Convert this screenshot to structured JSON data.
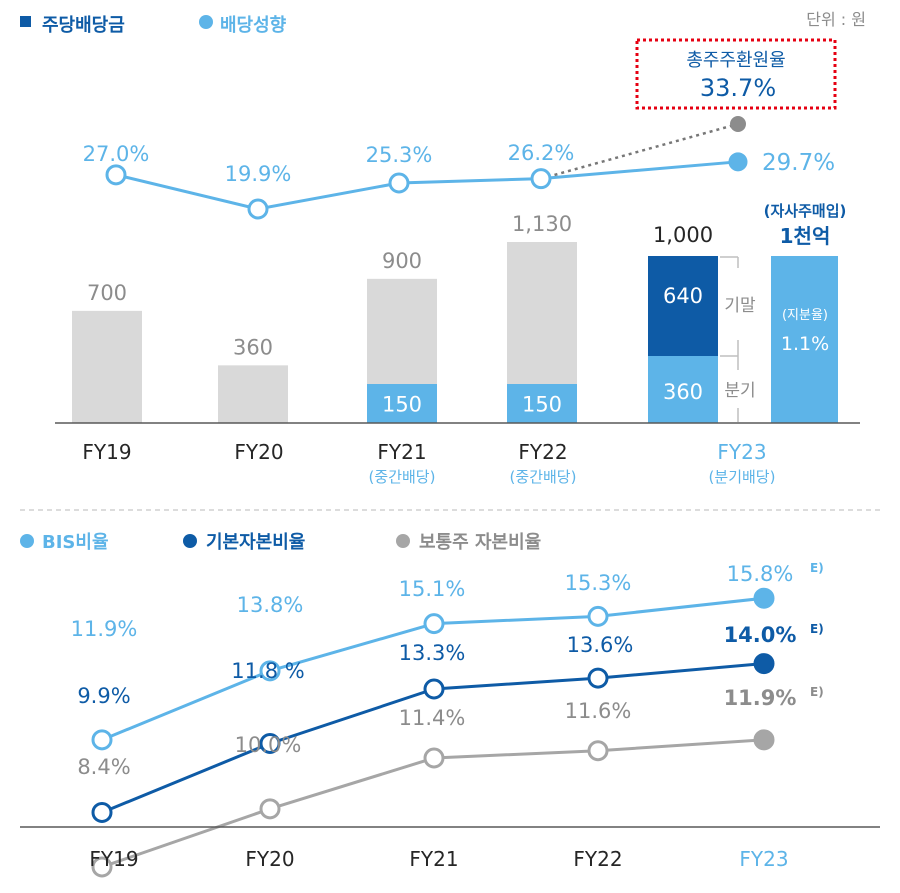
{
  "colors": {
    "dark_blue": "#0e5ba6",
    "light_blue": "#5db4e8",
    "gray_bar": "#d9d9d9",
    "gray_line": "#a6a6a6",
    "text_gray": "#8c8c8c",
    "text_dark": "#262626",
    "red_dotted": "#e60012"
  },
  "top_legend": {
    "dividend_label": "주당배당금",
    "payout_label": "배당성향"
  },
  "unit_label": "단위 : 원",
  "callout": {
    "title": "총주주환원율",
    "value": "33.7%"
  },
  "buyback": {
    "title": "(자사주매입)",
    "amount": "1천억",
    "ratio_label": "(지분율)",
    "ratio_value": "1.1%"
  },
  "fy23_split": {
    "year_end_label": "기말",
    "quarterly_label": "분기"
  },
  "top_categories": [
    {
      "name": "FY19",
      "sub": ""
    },
    {
      "name": "FY20",
      "sub": ""
    },
    {
      "name": "FY21",
      "sub": "(중간배당)"
    },
    {
      "name": "FY22",
      "sub": "(중간배당)"
    },
    {
      "name": "FY23",
      "sub": "(분기배당)"
    }
  ],
  "bottom_legend": {
    "bis_label": "BIS비율",
    "tier1_label": "기본자본비율",
    "cet1_label": "보통주 자본비율"
  },
  "bottom_categories": [
    "FY19",
    "FY20",
    "FY21",
    "FY22",
    "FY23"
  ],
  "chart_data": [
    {
      "type": "bar",
      "unit": "원",
      "categories": [
        "FY19",
        "FY20",
        "FY21",
        "FY22",
        "FY23"
      ],
      "series": [
        {
          "name": "주당배당금",
          "values": [
            700,
            360,
            900,
            1130,
            1000
          ],
          "labels": [
            "700",
            "360",
            "900",
            "1,130",
            "1,000"
          ]
        },
        {
          "name": "interim",
          "values": [
            null,
            null,
            150,
            150,
            360
          ],
          "labels": [
            "",
            "",
            "150",
            "150",
            "360"
          ]
        },
        {
          "name": "기말",
          "values": [
            null,
            null,
            null,
            null,
            640
          ],
          "labels": [
            "",
            "",
            "",
            "",
            "640"
          ]
        }
      ],
      "line_series": {
        "name": "배당성향",
        "values": [
          27.0,
          19.9,
          25.3,
          26.2,
          29.7
        ],
        "labels": [
          "27.0%",
          "19.9%",
          "25.3%",
          "26.2%",
          "29.7%"
        ]
      },
      "total_shareholder_return": 33.7
    },
    {
      "type": "line",
      "categories": [
        "FY19",
        "FY20",
        "FY21",
        "FY22",
        "FY23"
      ],
      "series": [
        {
          "name": "BIS비율",
          "values": [
            11.9,
            13.8,
            15.1,
            15.3,
            15.8
          ],
          "labels": [
            "11.9%",
            "13.8%",
            "15.1%",
            "15.3%",
            "15.8%"
          ]
        },
        {
          "name": "기본자본비율",
          "values": [
            9.9,
            11.8,
            13.3,
            13.6,
            14.0
          ],
          "labels": [
            "9.9%",
            "11.8 %",
            "13.3%",
            "13.6%",
            "14.0%"
          ]
        },
        {
          "name": "보통주 자본비율",
          "values": [
            8.4,
            10.0,
            11.4,
            11.6,
            11.9
          ],
          "labels": [
            "8.4%",
            "10.0%",
            "11.4%",
            "11.6%",
            "11.9%"
          ]
        }
      ],
      "estimate_mark": "E)"
    }
  ]
}
